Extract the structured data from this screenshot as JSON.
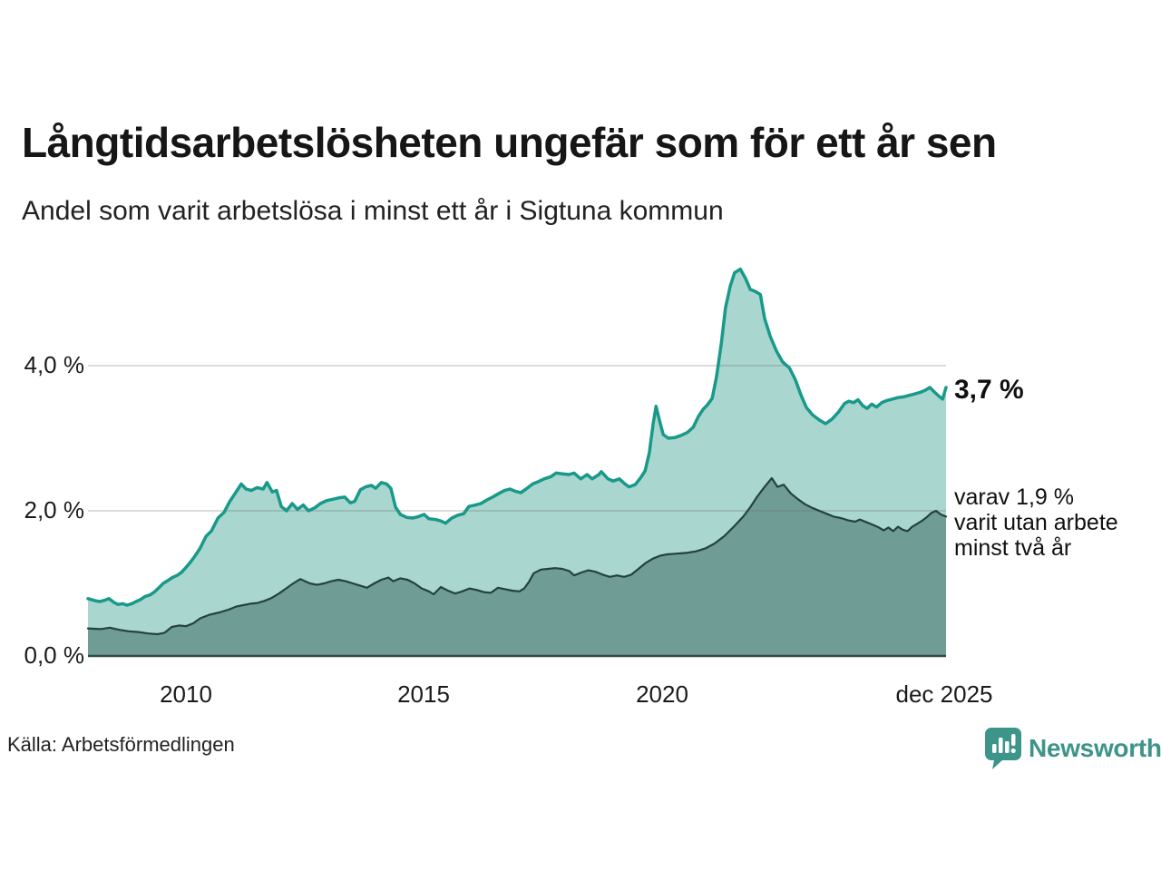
{
  "header": {
    "title": "Långtidsarbetslösheten ungefär som för ett år sen",
    "subtitle": "Andel som varit arbetslösa i minst ett år i Sigtuna kommun"
  },
  "footer": {
    "source": "Källa: Arbetsförmedlingen",
    "logo_text": "Newsworthy",
    "logo_color": "#3d9488"
  },
  "chart_data": {
    "type": "area",
    "title": "Långtidsarbetslösheten ungefär som för ett år sen",
    "subtitle": "Andel som varit arbetslösa i minst ett år i Sigtuna kommun",
    "x_domain": [
      2007.94,
      2025.96
    ],
    "ylim": [
      0,
      5.5
    ],
    "grid": "horizontal",
    "gridline_color": "rgba(110,110,110,0.25)",
    "axis_color": "#2e4a44",
    "x_axis": {
      "ticks": [
        {
          "label": "2010",
          "year": 2010
        },
        {
          "label": "2015",
          "year": 2015
        },
        {
          "label": "2020",
          "year": 2020
        },
        {
          "label": "dec 2025",
          "year": 2025.92
        }
      ]
    },
    "y_axis": {
      "unit": "%",
      "ticks": [
        {
          "label": "0,0 %",
          "value": 0
        },
        {
          "label": "2,0 %",
          "value": 2
        },
        {
          "label": "4,0 %",
          "value": 4
        }
      ]
    },
    "annotations": {
      "latest_value": "3,7 %",
      "secondary_line1": "varav 1,9 %",
      "secondary_line2": "varit utan arbete",
      "secondary_line3": "minst två år"
    },
    "series": [
      {
        "name": "arbetslösa minst ett år",
        "stroke": "#18998a",
        "stroke_width": 3.5,
        "fill": "#a9d6cf",
        "latest_value_pct": 3.7,
        "points": [
          [
            2007.94,
            0.79
          ],
          [
            2008.1,
            0.76
          ],
          [
            2008.19,
            0.75
          ],
          [
            2008.3,
            0.77
          ],
          [
            2008.38,
            0.79
          ],
          [
            2008.48,
            0.74
          ],
          [
            2008.57,
            0.71
          ],
          [
            2008.67,
            0.72
          ],
          [
            2008.76,
            0.7
          ],
          [
            2008.86,
            0.72
          ],
          [
            2008.95,
            0.75
          ],
          [
            2009.05,
            0.78
          ],
          [
            2009.14,
            0.82
          ],
          [
            2009.24,
            0.84
          ],
          [
            2009.33,
            0.88
          ],
          [
            2009.43,
            0.94
          ],
          [
            2009.52,
            1.0
          ],
          [
            2009.62,
            1.04
          ],
          [
            2009.71,
            1.08
          ],
          [
            2009.81,
            1.11
          ],
          [
            2009.9,
            1.15
          ],
          [
            2010.0,
            1.22
          ],
          [
            2010.1,
            1.3
          ],
          [
            2010.19,
            1.38
          ],
          [
            2010.29,
            1.48
          ],
          [
            2010.42,
            1.65
          ],
          [
            2010.53,
            1.72
          ],
          [
            2010.67,
            1.9
          ],
          [
            2010.8,
            1.98
          ],
          [
            2010.91,
            2.12
          ],
          [
            2011.05,
            2.26
          ],
          [
            2011.16,
            2.37
          ],
          [
            2011.26,
            2.3
          ],
          [
            2011.37,
            2.28
          ],
          [
            2011.49,
            2.32
          ],
          [
            2011.62,
            2.3
          ],
          [
            2011.7,
            2.39
          ],
          [
            2011.81,
            2.26
          ],
          [
            2011.9,
            2.28
          ],
          [
            2012.0,
            2.06
          ],
          [
            2012.11,
            2.0
          ],
          [
            2012.23,
            2.1
          ],
          [
            2012.34,
            2.02
          ],
          [
            2012.46,
            2.08
          ],
          [
            2012.57,
            2.0
          ],
          [
            2012.7,
            2.04
          ],
          [
            2012.82,
            2.1
          ],
          [
            2012.95,
            2.14
          ],
          [
            2013.09,
            2.16
          ],
          [
            2013.22,
            2.18
          ],
          [
            2013.33,
            2.19
          ],
          [
            2013.45,
            2.11
          ],
          [
            2013.54,
            2.13
          ],
          [
            2013.66,
            2.29
          ],
          [
            2013.77,
            2.33
          ],
          [
            2013.89,
            2.35
          ],
          [
            2013.98,
            2.31
          ],
          [
            2014.1,
            2.39
          ],
          [
            2014.21,
            2.37
          ],
          [
            2014.3,
            2.31
          ],
          [
            2014.4,
            2.05
          ],
          [
            2014.5,
            1.95
          ],
          [
            2014.63,
            1.91
          ],
          [
            2014.76,
            1.9
          ],
          [
            2014.88,
            1.92
          ],
          [
            2015.0,
            1.95
          ],
          [
            2015.1,
            1.89
          ],
          [
            2015.24,
            1.88
          ],
          [
            2015.35,
            1.86
          ],
          [
            2015.45,
            1.83
          ],
          [
            2015.58,
            1.9
          ],
          [
            2015.71,
            1.94
          ],
          [
            2015.83,
            1.96
          ],
          [
            2015.94,
            2.06
          ],
          [
            2016.08,
            2.08
          ],
          [
            2016.19,
            2.1
          ],
          [
            2016.32,
            2.15
          ],
          [
            2016.44,
            2.19
          ],
          [
            2016.57,
            2.24
          ],
          [
            2016.69,
            2.28
          ],
          [
            2016.8,
            2.3
          ],
          [
            2016.91,
            2.27
          ],
          [
            2017.03,
            2.25
          ],
          [
            2017.14,
            2.3
          ],
          [
            2017.28,
            2.37
          ],
          [
            2017.39,
            2.4
          ],
          [
            2017.52,
            2.44
          ],
          [
            2017.66,
            2.47
          ],
          [
            2017.77,
            2.52
          ],
          [
            2017.9,
            2.51
          ],
          [
            2018.04,
            2.5
          ],
          [
            2018.15,
            2.52
          ],
          [
            2018.29,
            2.44
          ],
          [
            2018.42,
            2.5
          ],
          [
            2018.53,
            2.44
          ],
          [
            2018.67,
            2.5
          ],
          [
            2018.72,
            2.54
          ],
          [
            2018.86,
            2.44
          ],
          [
            2018.97,
            2.41
          ],
          [
            2019.1,
            2.44
          ],
          [
            2019.2,
            2.38
          ],
          [
            2019.3,
            2.33
          ],
          [
            2019.43,
            2.36
          ],
          [
            2019.54,
            2.45
          ],
          [
            2019.64,
            2.55
          ],
          [
            2019.73,
            2.8
          ],
          [
            2019.81,
            3.2
          ],
          [
            2019.87,
            3.44
          ],
          [
            2019.94,
            3.25
          ],
          [
            2020.02,
            3.05
          ],
          [
            2020.13,
            3.0
          ],
          [
            2020.27,
            3.01
          ],
          [
            2020.4,
            3.04
          ],
          [
            2020.53,
            3.08
          ],
          [
            2020.65,
            3.15
          ],
          [
            2020.76,
            3.3
          ],
          [
            2020.86,
            3.4
          ],
          [
            2020.95,
            3.46
          ],
          [
            2021.05,
            3.55
          ],
          [
            2021.14,
            3.85
          ],
          [
            2021.24,
            4.3
          ],
          [
            2021.33,
            4.8
          ],
          [
            2021.43,
            5.1
          ],
          [
            2021.52,
            5.28
          ],
          [
            2021.64,
            5.33
          ],
          [
            2021.75,
            5.2
          ],
          [
            2021.85,
            5.05
          ],
          [
            2021.96,
            5.02
          ],
          [
            2022.06,
            4.98
          ],
          [
            2022.15,
            4.65
          ],
          [
            2022.27,
            4.4
          ],
          [
            2022.4,
            4.2
          ],
          [
            2022.53,
            4.05
          ],
          [
            2022.67,
            3.97
          ],
          [
            2022.8,
            3.8
          ],
          [
            2022.91,
            3.6
          ],
          [
            2023.03,
            3.42
          ],
          [
            2023.16,
            3.32
          ],
          [
            2023.3,
            3.25
          ],
          [
            2023.43,
            3.2
          ],
          [
            2023.56,
            3.26
          ],
          [
            2023.7,
            3.36
          ],
          [
            2023.83,
            3.48
          ],
          [
            2023.92,
            3.51
          ],
          [
            2024.02,
            3.49
          ],
          [
            2024.11,
            3.53
          ],
          [
            2024.21,
            3.45
          ],
          [
            2024.3,
            3.41
          ],
          [
            2024.4,
            3.47
          ],
          [
            2024.5,
            3.43
          ],
          [
            2024.61,
            3.49
          ],
          [
            2024.72,
            3.52
          ],
          [
            2024.84,
            3.54
          ],
          [
            2024.95,
            3.56
          ],
          [
            2025.07,
            3.57
          ],
          [
            2025.18,
            3.59
          ],
          [
            2025.3,
            3.61
          ],
          [
            2025.41,
            3.63
          ],
          [
            2025.52,
            3.66
          ],
          [
            2025.62,
            3.7
          ],
          [
            2025.71,
            3.64
          ],
          [
            2025.81,
            3.58
          ],
          [
            2025.89,
            3.54
          ],
          [
            2025.96,
            3.7
          ]
        ]
      },
      {
        "name": "varit utan arbete minst två år",
        "stroke": "#24423d",
        "stroke_width": 2.2,
        "fill": "#6f9c95",
        "latest_value_pct": 1.9,
        "points": [
          [
            2007.94,
            0.38
          ],
          [
            2008.2,
            0.37
          ],
          [
            2008.4,
            0.39
          ],
          [
            2008.6,
            0.36
          ],
          [
            2008.8,
            0.34
          ],
          [
            2009.0,
            0.33
          ],
          [
            2009.2,
            0.31
          ],
          [
            2009.4,
            0.3
          ],
          [
            2009.55,
            0.32
          ],
          [
            2009.7,
            0.4
          ],
          [
            2009.85,
            0.42
          ],
          [
            2010.0,
            0.41
          ],
          [
            2010.15,
            0.45
          ],
          [
            2010.3,
            0.52
          ],
          [
            2010.5,
            0.57
          ],
          [
            2010.7,
            0.6
          ],
          [
            2010.9,
            0.64
          ],
          [
            2011.05,
            0.68
          ],
          [
            2011.2,
            0.7
          ],
          [
            2011.35,
            0.72
          ],
          [
            2011.5,
            0.73
          ],
          [
            2011.65,
            0.76
          ],
          [
            2011.8,
            0.8
          ],
          [
            2011.95,
            0.86
          ],
          [
            2012.1,
            0.93
          ],
          [
            2012.25,
            1.0
          ],
          [
            2012.4,
            1.06
          ],
          [
            2012.5,
            1.03
          ],
          [
            2012.6,
            1.0
          ],
          [
            2012.75,
            0.98
          ],
          [
            2012.9,
            1.0
          ],
          [
            2013.05,
            1.03
          ],
          [
            2013.2,
            1.05
          ],
          [
            2013.35,
            1.03
          ],
          [
            2013.5,
            1.0
          ],
          [
            2013.65,
            0.97
          ],
          [
            2013.8,
            0.94
          ],
          [
            2013.95,
            1.0
          ],
          [
            2014.1,
            1.05
          ],
          [
            2014.25,
            1.08
          ],
          [
            2014.35,
            1.03
          ],
          [
            2014.5,
            1.07
          ],
          [
            2014.65,
            1.05
          ],
          [
            2014.8,
            1.0
          ],
          [
            2014.95,
            0.93
          ],
          [
            2015.1,
            0.89
          ],
          [
            2015.2,
            0.85
          ],
          [
            2015.35,
            0.95
          ],
          [
            2015.5,
            0.9
          ],
          [
            2015.65,
            0.86
          ],
          [
            2015.8,
            0.89
          ],
          [
            2015.95,
            0.93
          ],
          [
            2016.1,
            0.91
          ],
          [
            2016.25,
            0.88
          ],
          [
            2016.4,
            0.87
          ],
          [
            2016.55,
            0.94
          ],
          [
            2016.7,
            0.92
          ],
          [
            2016.85,
            0.9
          ],
          [
            2017.0,
            0.89
          ],
          [
            2017.1,
            0.93
          ],
          [
            2017.2,
            1.02
          ],
          [
            2017.3,
            1.14
          ],
          [
            2017.45,
            1.19
          ],
          [
            2017.6,
            1.2
          ],
          [
            2017.75,
            1.21
          ],
          [
            2017.9,
            1.2
          ],
          [
            2018.05,
            1.17
          ],
          [
            2018.15,
            1.11
          ],
          [
            2018.3,
            1.15
          ],
          [
            2018.45,
            1.18
          ],
          [
            2018.6,
            1.16
          ],
          [
            2018.75,
            1.12
          ],
          [
            2018.9,
            1.09
          ],
          [
            2019.05,
            1.11
          ],
          [
            2019.2,
            1.09
          ],
          [
            2019.35,
            1.12
          ],
          [
            2019.5,
            1.2
          ],
          [
            2019.65,
            1.28
          ],
          [
            2019.8,
            1.34
          ],
          [
            2019.95,
            1.38
          ],
          [
            2020.1,
            1.4
          ],
          [
            2020.3,
            1.41
          ],
          [
            2020.5,
            1.42
          ],
          [
            2020.7,
            1.44
          ],
          [
            2020.9,
            1.48
          ],
          [
            2021.1,
            1.55
          ],
          [
            2021.3,
            1.65
          ],
          [
            2021.5,
            1.78
          ],
          [
            2021.7,
            1.92
          ],
          [
            2021.85,
            2.05
          ],
          [
            2022.0,
            2.2
          ],
          [
            2022.15,
            2.33
          ],
          [
            2022.3,
            2.45
          ],
          [
            2022.42,
            2.33
          ],
          [
            2022.55,
            2.36
          ],
          [
            2022.7,
            2.24
          ],
          [
            2022.85,
            2.16
          ],
          [
            2023.0,
            2.09
          ],
          [
            2023.15,
            2.04
          ],
          [
            2023.3,
            2.0
          ],
          [
            2023.45,
            1.96
          ],
          [
            2023.6,
            1.92
          ],
          [
            2023.75,
            1.9
          ],
          [
            2023.9,
            1.87
          ],
          [
            2024.05,
            1.85
          ],
          [
            2024.15,
            1.88
          ],
          [
            2024.3,
            1.84
          ],
          [
            2024.45,
            1.8
          ],
          [
            2024.55,
            1.77
          ],
          [
            2024.65,
            1.73
          ],
          [
            2024.75,
            1.77
          ],
          [
            2024.85,
            1.72
          ],
          [
            2024.95,
            1.78
          ],
          [
            2025.05,
            1.74
          ],
          [
            2025.15,
            1.72
          ],
          [
            2025.25,
            1.78
          ],
          [
            2025.35,
            1.82
          ],
          [
            2025.45,
            1.86
          ],
          [
            2025.55,
            1.91
          ],
          [
            2025.65,
            1.97
          ],
          [
            2025.75,
            2.0
          ],
          [
            2025.85,
            1.95
          ],
          [
            2025.96,
            1.92
          ]
        ]
      }
    ]
  }
}
